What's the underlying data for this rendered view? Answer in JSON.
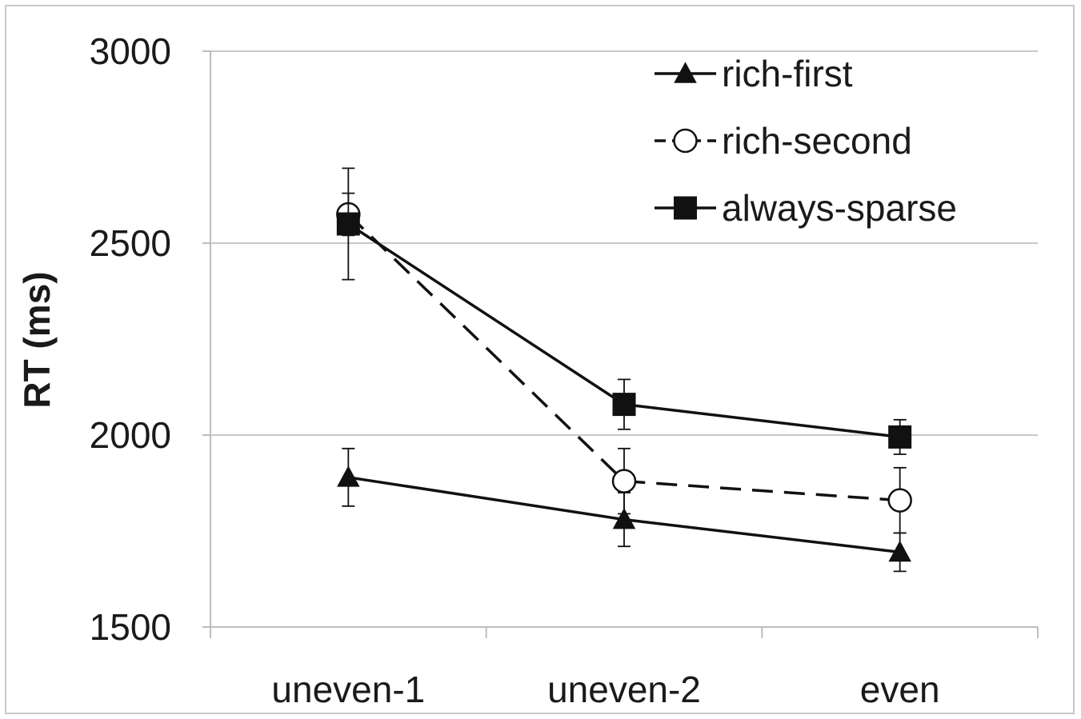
{
  "chart_data": {
    "type": "line",
    "title": "",
    "xlabel": "",
    "ylabel": "RT (ms)",
    "categories": [
      "uneven-1",
      "uneven-2",
      "even"
    ],
    "ylim": [
      1500,
      3000
    ],
    "yticks": [
      1500,
      2000,
      2500,
      3000
    ],
    "grid": true,
    "legend_position": "top-right",
    "series": [
      {
        "name": "rich-first",
        "marker": "filled-triangle",
        "line_style": "solid",
        "values": [
          1890,
          1780,
          1695
        ],
        "error": [
          75,
          70,
          50
        ]
      },
      {
        "name": "rich-second",
        "marker": "open-circle",
        "line_style": "dashed",
        "values": [
          2575,
          1880,
          1830
        ],
        "error": [
          55,
          85,
          85
        ]
      },
      {
        "name": "always-sparse",
        "marker": "filled-square",
        "line_style": "solid",
        "values": [
          2550,
          2080,
          1995
        ],
        "error": [
          145,
          65,
          45
        ]
      }
    ],
    "colors": {
      "line": "#111111",
      "grid": "#c8c8c8",
      "axis": "#bdbdbd",
      "text": "#1a1a1a",
      "background": "#ffffff"
    }
  }
}
